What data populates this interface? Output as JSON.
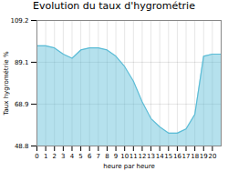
{
  "chart_data": {
    "type": "area",
    "title": "Evolution du taux d'hygrométrie",
    "xlabel": "heure par heure",
    "ylabel": "Taux hygrométrie %",
    "x": [
      0,
      1,
      2,
      3,
      4,
      5,
      6,
      7,
      8,
      9,
      10,
      11,
      12,
      13,
      14,
      15,
      16,
      17,
      18,
      19,
      20,
      21
    ],
    "values": [
      97,
      97,
      96,
      93,
      91,
      95,
      96,
      96,
      95,
      92,
      87,
      80,
      70,
      62,
      58,
      55,
      55,
      57,
      64,
      92,
      93,
      93
    ],
    "color": "#5bbcd6",
    "xlim": [
      0,
      21
    ],
    "xticks": [
      0,
      1,
      2,
      3,
      4,
      5,
      6,
      7,
      8,
      9,
      10,
      11,
      12,
      13,
      14,
      15,
      16,
      17,
      18,
      19,
      20
    ],
    "ylim": [
      48.8,
      109.2
    ],
    "yticks": [
      48.8,
      68.9,
      89.1,
      109.2
    ],
    "grid": true
  }
}
